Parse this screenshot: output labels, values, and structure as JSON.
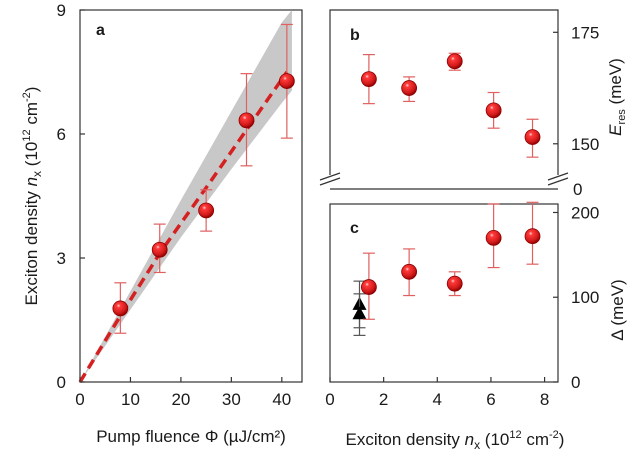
{
  "colors": {
    "marker": "#d11a1a",
    "marker_dark": "#8e0000",
    "fit_line": "#d42020",
    "band": "#c8c8c8",
    "error_bar": "#e06060",
    "black_marker": "#000000",
    "grey_error": "#555555"
  },
  "chart_data": [
    {
      "id": "a",
      "panel_label": "a",
      "type": "scatter",
      "xlabel": "Pump fluence Φ (µJ/cm²)",
      "ylabel_parts": {
        "pre": "Exciton density ",
        "var": "n",
        "sub": "x",
        "mid": " (10",
        "sup1": "12",
        "post1": " cm",
        "sup2": "-2",
        "post2": ")"
      },
      "xlim": [
        0,
        44
      ],
      "ylim": [
        0,
        9
      ],
      "xticks": [
        "0",
        "10",
        "20",
        "30",
        "40"
      ],
      "xtick_values": [
        0,
        10,
        20,
        30,
        40
      ],
      "yticks": [
        "0",
        "3",
        "6",
        "9"
      ],
      "ytick_values": [
        0,
        3,
        6,
        9
      ],
      "points": [
        {
          "x": 8.0,
          "y": 1.78,
          "err_lo": 0.6,
          "err_hi": 0.62
        },
        {
          "x": 15.8,
          "y": 3.2,
          "err_lo": 0.55,
          "err_hi": 0.62
        },
        {
          "x": 25.0,
          "y": 4.15,
          "err_lo": 0.5,
          "err_hi": 0.5
        },
        {
          "x": 33.0,
          "y": 6.33,
          "err_lo": 1.1,
          "err_hi": 1.13
        },
        {
          "x": 41.0,
          "y": 7.28,
          "err_lo": 1.38,
          "err_hi": 1.37
        }
      ],
      "fit_line": [
        [
          0,
          0
        ],
        [
          8,
          1.6
        ],
        [
          16,
          3.15
        ],
        [
          25,
          4.7
        ],
        [
          33,
          6.1
        ],
        [
          41,
          7.5
        ]
      ],
      "band_upper": [
        [
          0,
          0
        ],
        [
          10,
          2.2
        ],
        [
          20,
          4.4
        ],
        [
          30,
          6.55
        ],
        [
          40,
          8.7
        ],
        [
          42,
          9.0
        ]
      ],
      "band_lower": [
        [
          0,
          0
        ],
        [
          10,
          1.75
        ],
        [
          20,
          3.5
        ],
        [
          30,
          5.15
        ],
        [
          40,
          6.75
        ],
        [
          42,
          7.05
        ]
      ]
    },
    {
      "id": "b",
      "panel_label": "b",
      "type": "scatter",
      "ylabel_parts": {
        "var": "E",
        "sub": "res",
        "post": " (meV)"
      },
      "xlim": [
        0,
        8.5
      ],
      "ylim": [
        143,
        180
      ],
      "yticks": [
        "150",
        "175"
      ],
      "ytick_values": [
        150,
        175
      ],
      "extra_ytick": {
        "label": "0"
      },
      "points": [
        {
          "x": 1.45,
          "y": 164.5,
          "err_lo": 5.5,
          "err_hi": 5.5
        },
        {
          "x": 2.95,
          "y": 162.5,
          "err_lo": 3.0,
          "err_hi": 2.5
        },
        {
          "x": 4.65,
          "y": 168.5,
          "err_lo": 2.0,
          "err_hi": 1.8
        },
        {
          "x": 6.1,
          "y": 157.5,
          "err_lo": 4.0,
          "err_hi": 4.0
        },
        {
          "x": 7.55,
          "y": 151.5,
          "err_lo": 4.5,
          "err_hi": 4.0
        }
      ]
    },
    {
      "id": "c",
      "panel_label": "c",
      "type": "scatter",
      "xlabel_parts": {
        "pre": "Exciton density ",
        "var": "n",
        "sub": "x",
        "mid": " (10",
        "sup1": "12",
        "post1": " cm",
        "sup2": "-2",
        "post2": ")"
      },
      "ylabel": "Δ (meV)",
      "xlim": [
        0,
        8.5
      ],
      "ylim": [
        0,
        210
      ],
      "xticks": [
        "0",
        "2",
        "4",
        "6",
        "8"
      ],
      "xtick_values": [
        0,
        2,
        4,
        6,
        8
      ],
      "yticks": [
        "0",
        "100",
        "200"
      ],
      "ytick_values": [
        0,
        100,
        200
      ],
      "points": [
        {
          "x": 1.45,
          "y": 112,
          "err_lo": 38,
          "err_hi": 40
        },
        {
          "x": 2.95,
          "y": 130,
          "err_lo": 28,
          "err_hi": 27
        },
        {
          "x": 4.65,
          "y": 116,
          "err_lo": 14,
          "err_hi": 14
        },
        {
          "x": 6.1,
          "y": 170,
          "err_lo": 35,
          "err_hi": 40
        },
        {
          "x": 7.55,
          "y": 172,
          "err_lo": 33,
          "err_hi": 40
        }
      ],
      "triangles": [
        {
          "x": 1.1,
          "y": 91,
          "err_lo": 27,
          "err_hi": 28
        },
        {
          "x": 1.1,
          "y": 80,
          "err_lo": 25,
          "err_hi": 24
        }
      ]
    }
  ]
}
